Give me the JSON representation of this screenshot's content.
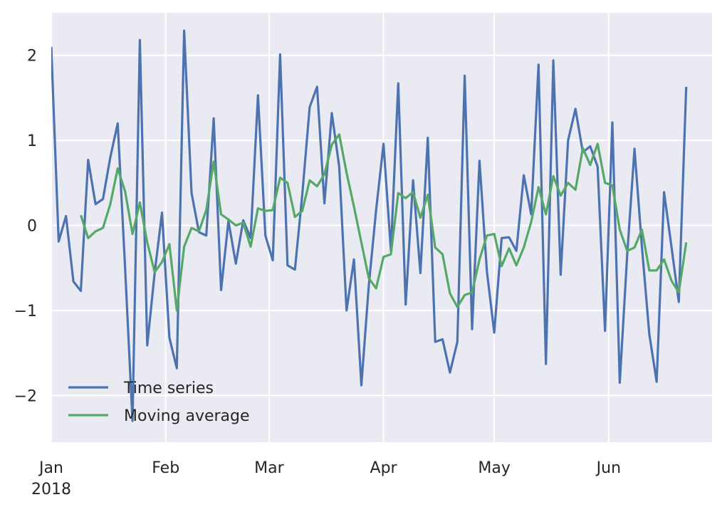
{
  "chart_data": {
    "type": "line",
    "x_axis": {
      "type": "date",
      "range": [
        "2018-01-01",
        "2018-06-29"
      ],
      "ticks": [
        {
          "date": "2018-01-01",
          "label": "Jan",
          "sublabel": "2018"
        },
        {
          "date": "2018-02-01",
          "label": "Feb"
        },
        {
          "date": "2018-03-01",
          "label": "Mar"
        },
        {
          "date": "2018-04-01",
          "label": "Apr"
        },
        {
          "date": "2018-05-01",
          "label": "May"
        },
        {
          "date": "2018-06-01",
          "label": "Jun"
        }
      ]
    },
    "y_axis": {
      "range": [
        -2.55,
        2.5
      ],
      "ticks": [
        {
          "value": -2,
          "label": "−2"
        },
        {
          "value": -1,
          "label": "−1"
        },
        {
          "value": 0,
          "label": "0"
        },
        {
          "value": 1,
          "label": "1"
        },
        {
          "value": 2,
          "label": "2"
        }
      ]
    },
    "grid": true,
    "background": "#eaeaf2",
    "legend": {
      "placement": "lower-left"
    },
    "series": [
      {
        "name": "Time series",
        "color": "#4c72b0",
        "points": [
          {
            "x": "2018-01-01",
            "y": 2.1
          },
          {
            "x": "2018-01-03",
            "y": -0.19
          },
          {
            "x": "2018-01-05",
            "y": 0.11
          },
          {
            "x": "2018-01-07",
            "y": -0.66
          },
          {
            "x": "2018-01-09",
            "y": -0.77
          },
          {
            "x": "2018-01-11",
            "y": 0.77
          },
          {
            "x": "2018-01-13",
            "y": 0.25
          },
          {
            "x": "2018-01-15",
            "y": 0.31
          },
          {
            "x": "2018-01-17",
            "y": 0.8
          },
          {
            "x": "2018-01-19",
            "y": 1.2
          },
          {
            "x": "2018-01-21",
            "y": -0.5
          },
          {
            "x": "2018-01-23",
            "y": -2.3
          },
          {
            "x": "2018-01-25",
            "y": 2.18
          },
          {
            "x": "2018-01-27",
            "y": -1.41
          },
          {
            "x": "2018-01-29",
            "y": -0.56
          },
          {
            "x": "2018-01-31",
            "y": 0.15
          },
          {
            "x": "2018-02-02",
            "y": -1.32
          },
          {
            "x": "2018-02-04",
            "y": -1.68
          },
          {
            "x": "2018-02-06",
            "y": 2.29
          },
          {
            "x": "2018-02-08",
            "y": 0.38
          },
          {
            "x": "2018-02-10",
            "y": -0.08
          },
          {
            "x": "2018-02-12",
            "y": -0.12
          },
          {
            "x": "2018-02-14",
            "y": 1.26
          },
          {
            "x": "2018-02-16",
            "y": -0.76
          },
          {
            "x": "2018-02-18",
            "y": 0.05
          },
          {
            "x": "2018-02-20",
            "y": -0.45
          },
          {
            "x": "2018-02-22",
            "y": 0.06
          },
          {
            "x": "2018-02-24",
            "y": -0.15
          },
          {
            "x": "2018-02-26",
            "y": 1.53
          },
          {
            "x": "2018-02-28",
            "y": -0.12
          },
          {
            "x": "2018-03-02",
            "y": -0.41
          },
          {
            "x": "2018-03-04",
            "y": 2.01
          },
          {
            "x": "2018-03-06",
            "y": -0.47
          },
          {
            "x": "2018-03-08",
            "y": -0.52
          },
          {
            "x": "2018-03-10",
            "y": 0.36
          },
          {
            "x": "2018-03-12",
            "y": 1.39
          },
          {
            "x": "2018-03-14",
            "y": 1.63
          },
          {
            "x": "2018-03-16",
            "y": 0.26
          },
          {
            "x": "2018-03-18",
            "y": 1.32
          },
          {
            "x": "2018-03-20",
            "y": 0.69
          },
          {
            "x": "2018-03-22",
            "y": -1.0
          },
          {
            "x": "2018-03-24",
            "y": -0.4
          },
          {
            "x": "2018-03-26",
            "y": -1.88
          },
          {
            "x": "2018-03-28",
            "y": -0.71
          },
          {
            "x": "2018-03-30",
            "y": 0.18
          },
          {
            "x": "2018-04-01",
            "y": 0.96
          },
          {
            "x": "2018-04-03",
            "y": -0.3
          },
          {
            "x": "2018-04-05",
            "y": 1.67
          },
          {
            "x": "2018-04-07",
            "y": -0.93
          },
          {
            "x": "2018-04-09",
            "y": 0.53
          },
          {
            "x": "2018-04-11",
            "y": -0.56
          },
          {
            "x": "2018-04-13",
            "y": 1.03
          },
          {
            "x": "2018-04-15",
            "y": -1.37
          },
          {
            "x": "2018-04-17",
            "y": -1.34
          },
          {
            "x": "2018-04-19",
            "y": -1.73
          },
          {
            "x": "2018-04-21",
            "y": -1.37
          },
          {
            "x": "2018-04-23",
            "y": 1.76
          },
          {
            "x": "2018-04-25",
            "y": -1.22
          },
          {
            "x": "2018-04-27",
            "y": 0.76
          },
          {
            "x": "2018-04-29",
            "y": -0.54
          },
          {
            "x": "2018-05-01",
            "y": -1.26
          },
          {
            "x": "2018-05-03",
            "y": -0.15
          },
          {
            "x": "2018-05-05",
            "y": -0.14
          },
          {
            "x": "2018-05-07",
            "y": -0.3
          },
          {
            "x": "2018-05-09",
            "y": 0.59
          },
          {
            "x": "2018-05-11",
            "y": 0.13
          },
          {
            "x": "2018-05-13",
            "y": 1.89
          },
          {
            "x": "2018-05-15",
            "y": -1.63
          },
          {
            "x": "2018-05-17",
            "y": 1.94
          },
          {
            "x": "2018-05-19",
            "y": -0.58
          },
          {
            "x": "2018-05-21",
            "y": 1.0
          },
          {
            "x": "2018-05-23",
            "y": 1.37
          },
          {
            "x": "2018-05-25",
            "y": 0.86
          },
          {
            "x": "2018-05-27",
            "y": 0.93
          },
          {
            "x": "2018-05-29",
            "y": 0.69
          },
          {
            "x": "2018-05-31",
            "y": -1.24
          },
          {
            "x": "2018-06-02",
            "y": 1.21
          },
          {
            "x": "2018-06-04",
            "y": -1.85
          },
          {
            "x": "2018-06-06",
            "y": -0.35
          },
          {
            "x": "2018-06-08",
            "y": 0.9
          },
          {
            "x": "2018-06-10",
            "y": -0.25
          },
          {
            "x": "2018-06-12",
            "y": -1.28
          },
          {
            "x": "2018-06-14",
            "y": -1.84
          },
          {
            "x": "2018-06-16",
            "y": 0.39
          },
          {
            "x": "2018-06-18",
            "y": -0.25
          },
          {
            "x": "2018-06-20",
            "y": -0.9
          },
          {
            "x": "2018-06-22",
            "y": 1.63
          }
        ]
      },
      {
        "name": "Moving average",
        "color": "#55a868",
        "points": [
          {
            "x": "2018-01-09",
            "y": 0.12
          },
          {
            "x": "2018-01-11",
            "y": -0.15
          },
          {
            "x": "2018-01-13",
            "y": -0.07
          },
          {
            "x": "2018-01-15",
            "y": -0.03
          },
          {
            "x": "2018-01-17",
            "y": 0.25
          },
          {
            "x": "2018-01-19",
            "y": 0.67
          },
          {
            "x": "2018-01-21",
            "y": 0.4
          },
          {
            "x": "2018-01-23",
            "y": -0.1
          },
          {
            "x": "2018-01-25",
            "y": 0.27
          },
          {
            "x": "2018-01-27",
            "y": -0.2
          },
          {
            "x": "2018-01-29",
            "y": -0.55
          },
          {
            "x": "2018-01-31",
            "y": -0.43
          },
          {
            "x": "2018-02-02",
            "y": -0.22
          },
          {
            "x": "2018-02-04",
            "y": -1.0
          },
          {
            "x": "2018-02-06",
            "y": -0.25
          },
          {
            "x": "2018-02-08",
            "y": -0.03
          },
          {
            "x": "2018-02-10",
            "y": -0.07
          },
          {
            "x": "2018-02-12",
            "y": 0.18
          },
          {
            "x": "2018-02-14",
            "y": 0.75
          },
          {
            "x": "2018-02-16",
            "y": 0.13
          },
          {
            "x": "2018-02-18",
            "y": 0.07
          },
          {
            "x": "2018-02-20",
            "y": 0.0
          },
          {
            "x": "2018-02-22",
            "y": 0.03
          },
          {
            "x": "2018-02-24",
            "y": -0.25
          },
          {
            "x": "2018-02-26",
            "y": 0.2
          },
          {
            "x": "2018-02-28",
            "y": 0.17
          },
          {
            "x": "2018-03-02",
            "y": 0.18
          },
          {
            "x": "2018-03-04",
            "y": 0.56
          },
          {
            "x": "2018-03-06",
            "y": 0.5
          },
          {
            "x": "2018-03-08",
            "y": 0.1
          },
          {
            "x": "2018-03-10",
            "y": 0.17
          },
          {
            "x": "2018-03-12",
            "y": 0.53
          },
          {
            "x": "2018-03-14",
            "y": 0.46
          },
          {
            "x": "2018-03-16",
            "y": 0.6
          },
          {
            "x": "2018-03-18",
            "y": 0.95
          },
          {
            "x": "2018-03-20",
            "y": 1.07
          },
          {
            "x": "2018-03-22",
            "y": 0.62
          },
          {
            "x": "2018-03-24",
            "y": 0.22
          },
          {
            "x": "2018-03-26",
            "y": -0.2
          },
          {
            "x": "2018-03-28",
            "y": -0.62
          },
          {
            "x": "2018-03-30",
            "y": -0.74
          },
          {
            "x": "2018-04-01",
            "y": -0.37
          },
          {
            "x": "2018-04-03",
            "y": -0.34
          },
          {
            "x": "2018-04-05",
            "y": 0.38
          },
          {
            "x": "2018-04-07",
            "y": 0.32
          },
          {
            "x": "2018-04-09",
            "y": 0.39
          },
          {
            "x": "2018-04-11",
            "y": 0.09
          },
          {
            "x": "2018-04-13",
            "y": 0.36
          },
          {
            "x": "2018-04-15",
            "y": -0.26
          },
          {
            "x": "2018-04-17",
            "y": -0.34
          },
          {
            "x": "2018-04-19",
            "y": -0.8
          },
          {
            "x": "2018-04-21",
            "y": -0.96
          },
          {
            "x": "2018-04-23",
            "y": -0.82
          },
          {
            "x": "2018-04-25",
            "y": -0.79
          },
          {
            "x": "2018-04-27",
            "y": -0.4
          },
          {
            "x": "2018-04-29",
            "y": -0.12
          },
          {
            "x": "2018-05-01",
            "y": -0.1
          },
          {
            "x": "2018-05-03",
            "y": -0.48
          },
          {
            "x": "2018-05-05",
            "y": -0.27
          },
          {
            "x": "2018-05-07",
            "y": -0.47
          },
          {
            "x": "2018-05-09",
            "y": -0.26
          },
          {
            "x": "2018-05-11",
            "y": 0.04
          },
          {
            "x": "2018-05-13",
            "y": 0.45
          },
          {
            "x": "2018-05-15",
            "y": 0.13
          },
          {
            "x": "2018-05-17",
            "y": 0.58
          },
          {
            "x": "2018-05-19",
            "y": 0.35
          },
          {
            "x": "2018-05-21",
            "y": 0.5
          },
          {
            "x": "2018-05-23",
            "y": 0.42
          },
          {
            "x": "2018-05-25",
            "y": 0.91
          },
          {
            "x": "2018-05-27",
            "y": 0.71
          },
          {
            "x": "2018-05-29",
            "y": 0.96
          },
          {
            "x": "2018-05-31",
            "y": 0.5
          },
          {
            "x": "2018-06-02",
            "y": 0.47
          },
          {
            "x": "2018-06-04",
            "y": -0.05
          },
          {
            "x": "2018-06-06",
            "y": -0.3
          },
          {
            "x": "2018-06-08",
            "y": -0.26
          },
          {
            "x": "2018-06-10",
            "y": -0.05
          },
          {
            "x": "2018-06-12",
            "y": -0.53
          },
          {
            "x": "2018-06-14",
            "y": -0.53
          },
          {
            "x": "2018-06-16",
            "y": -0.4
          },
          {
            "x": "2018-06-18",
            "y": -0.65
          },
          {
            "x": "2018-06-20",
            "y": -0.79
          },
          {
            "x": "2018-06-22",
            "y": -0.2
          }
        ]
      }
    ]
  }
}
